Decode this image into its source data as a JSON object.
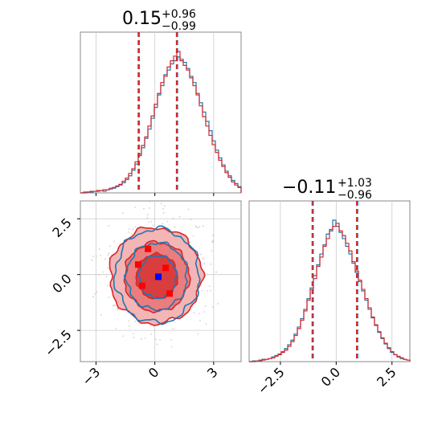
{
  "chart_data": {
    "type": "corner",
    "colors": {
      "series_a": "#1f77b4",
      "series_b": "#d62728",
      "marker_blue": "#0000ff",
      "marker_red": "#ff0000",
      "grid": "#cccccc"
    },
    "parameters": [
      {
        "title_value": "0.15",
        "title_plus": "+0.96",
        "title_minus": "−0.99",
        "median": 0.15,
        "q_low": -0.84,
        "q_high": 1.11,
        "range": [
          -3.8,
          4.4
        ],
        "ticks": [
          -3,
          0,
          3
        ],
        "tick_labels": [
          "−3",
          "0",
          "3"
        ]
      },
      {
        "title_value": "−0.11",
        "title_plus": "+1.03",
        "title_minus": "−0.96",
        "median": -0.11,
        "q_low": -1.07,
        "q_high": 0.92,
        "range": [
          -3.9,
          3.3
        ],
        "ticks": [
          -2.5,
          0.0,
          2.5
        ],
        "tick_labels": [
          "−2.5",
          "0.0",
          "2.5"
        ]
      }
    ],
    "hist1": {
      "bin_start": -3.8,
      "bin_width": 0.164,
      "series_a": [
        0,
        0,
        1,
        1,
        2,
        2,
        3,
        2,
        4,
        5,
        6,
        8,
        10,
        13,
        17,
        22,
        29,
        37,
        48,
        58,
        70,
        82,
        96,
        110,
        126,
        138,
        152,
        158,
        166,
        170,
        175,
        172,
        168,
        160,
        150,
        142,
        128,
        116,
        104,
        92,
        80,
        67,
        55,
        45,
        36,
        28,
        22,
        16,
        12,
        8
      ],
      "series_b": [
        0,
        1,
        1,
        2,
        2,
        3,
        3,
        4,
        4,
        6,
        7,
        9,
        11,
        15,
        19,
        25,
        31,
        40,
        50,
        61,
        72,
        86,
        99,
        114,
        128,
        142,
        150,
        162,
        170,
        176,
        182,
        170,
        164,
        158,
        148,
        138,
        126,
        112,
        98,
        86,
        74,
        62,
        52,
        42,
        34,
        26,
        20,
        14,
        10,
        7
      ]
    },
    "hist2": {
      "bin_start": -3.9,
      "bin_width": 0.144,
      "series_a": [
        0,
        1,
        1,
        2,
        3,
        3,
        4,
        6,
        8,
        10,
        13,
        17,
        22,
        28,
        36,
        45,
        56,
        68,
        82,
        96,
        112,
        126,
        140,
        152,
        166,
        170,
        184,
        176,
        168,
        160,
        150,
        140,
        128,
        116,
        104,
        92,
        80,
        68,
        57,
        47,
        38,
        30,
        23,
        17,
        12,
        9,
        6,
        4,
        3,
        2
      ],
      "series_b": [
        0,
        0,
        1,
        1,
        2,
        3,
        4,
        5,
        7,
        9,
        12,
        15,
        20,
        26,
        34,
        43,
        54,
        66,
        80,
        94,
        108,
        124,
        136,
        150,
        160,
        172,
        176,
        180,
        170,
        164,
        154,
        144,
        130,
        118,
        106,
        94,
        82,
        70,
        58,
        48,
        39,
        31,
        24,
        18,
        13,
        9,
        7,
        5,
        3,
        2
      ]
    },
    "joint": {
      "contours_a": [
        {
          "rx": 2.15,
          "ry": 2.1,
          "cx": 0.12,
          "cy": -0.05
        },
        {
          "rx": 1.55,
          "ry": 1.5,
          "cx": 0.1,
          "cy": -0.08
        },
        {
          "rx": 0.95,
          "ry": 0.95,
          "cx": 0.15,
          "cy": -0.1
        }
      ],
      "contours_b": [
        {
          "rx": 2.35,
          "ry": 2.15,
          "cx": 0.05,
          "cy": -0.05
        },
        {
          "rx": 1.65,
          "ry": 1.55,
          "cx": 0.1,
          "cy": -0.1
        },
        {
          "rx": 1.05,
          "ry": 1.0,
          "cx": 0.1,
          "cy": -0.08
        }
      ],
      "red_markers": [
        {
          "x": -0.85,
          "y": 0.45
        },
        {
          "x": -0.35,
          "y": 1.15
        },
        {
          "x": 0.55,
          "y": 0.3
        },
        {
          "x": -0.65,
          "y": -0.5
        },
        {
          "x": 0.75,
          "y": -0.85
        }
      ],
      "blue_marker": {
        "x": 0.18,
        "y": -0.1
      }
    }
  }
}
